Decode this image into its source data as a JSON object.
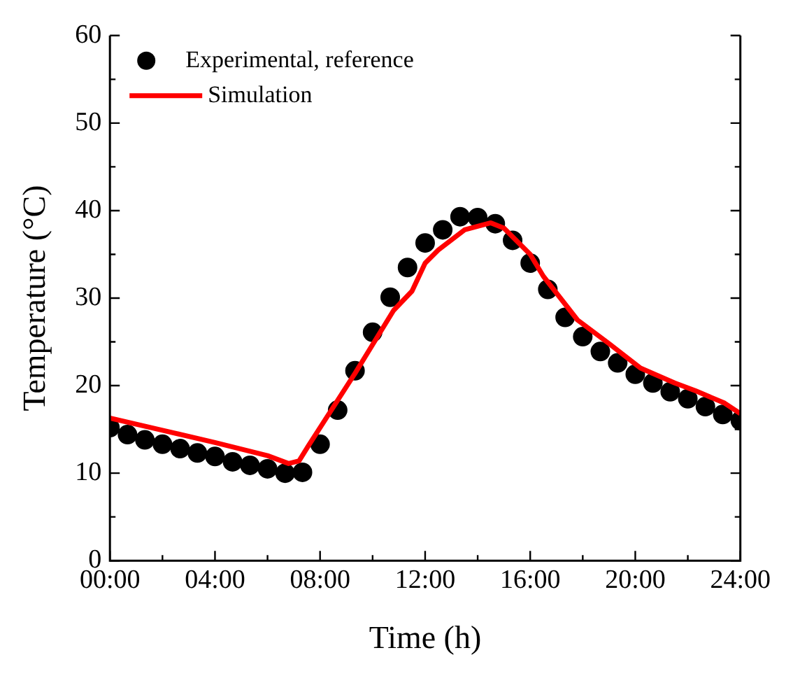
{
  "chart_data": {
    "type": "scatter",
    "xlabel": "Time (h)",
    "ylabel": "Temperature (°C)",
    "xlim": [
      0,
      24
    ],
    "xticks": [
      {
        "value": 0,
        "label": "00:00"
      },
      {
        "value": 4,
        "label": "04:00"
      },
      {
        "value": 8,
        "label": "08:00"
      },
      {
        "value": 12,
        "label": "12:00"
      },
      {
        "value": 16,
        "label": "16:00"
      },
      {
        "value": 20,
        "label": "20:00"
      },
      {
        "value": 24,
        "label": "24:00"
      }
    ],
    "ylim": [
      0,
      60
    ],
    "yticks": [
      0,
      10,
      20,
      30,
      40,
      50,
      60
    ],
    "grid": false,
    "legend": "top left",
    "series": [
      {
        "name": "Experimental, reference",
        "color": "#000000",
        "marker": "circle",
        "x": [
          0,
          0.67,
          1.33,
          2,
          2.67,
          3.33,
          4,
          4.67,
          5.33,
          6,
          6.67,
          7.33,
          8,
          8.67,
          9.33,
          10,
          10.67,
          11.33,
          12,
          12.67,
          13.33,
          14,
          14.67,
          15.33,
          16,
          16.67,
          17.33,
          18,
          18.67,
          19.33,
          20,
          20.67,
          21.33,
          22,
          22.67,
          23.33,
          24
        ],
        "values": [
          15.2,
          14.4,
          13.8,
          13.3,
          12.8,
          12.3,
          11.9,
          11.3,
          10.9,
          10.5,
          10.0,
          10.1,
          13.3,
          17.2,
          21.7,
          26.1,
          30.1,
          33.5,
          36.3,
          37.8,
          39.3,
          39.2,
          38.5,
          36.6,
          34.0,
          31.0,
          27.8,
          25.6,
          23.9,
          22.6,
          21.3,
          20.3,
          19.3,
          18.5,
          17.6,
          16.7,
          16.0
        ]
      },
      {
        "name": "Simulation",
        "type": "line",
        "color": "#ff0000",
        "marker": "none",
        "line_style": "solid",
        "x": [
          0,
          2,
          4,
          6,
          6.8,
          7.2,
          7.55,
          9.35,
          10.8,
          11.5,
          12,
          12.5,
          13.5,
          14.5,
          15,
          16,
          16.5,
          17.8,
          19,
          20.2,
          21.5,
          22.3,
          23.4,
          24
        ],
        "values": [
          16.3,
          14.9,
          13.5,
          12.0,
          11.1,
          11.4,
          13.1,
          21.5,
          28.6,
          30.8,
          34,
          35.5,
          37.8,
          38.6,
          38,
          35,
          32.5,
          27.5,
          24.8,
          22,
          20.3,
          19.4,
          18,
          16.8
        ]
      }
    ]
  }
}
